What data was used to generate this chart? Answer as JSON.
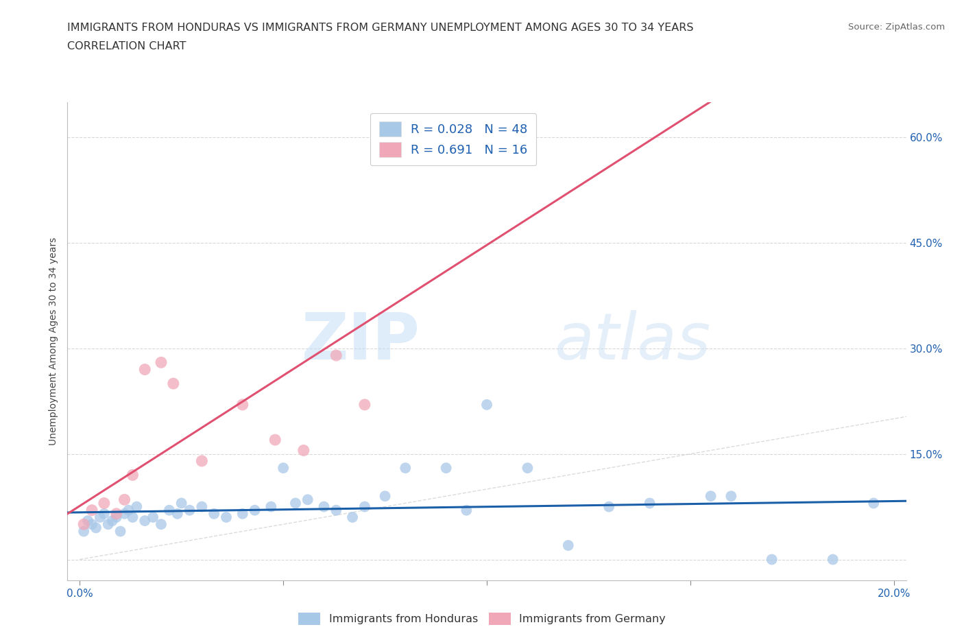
{
  "title_line1": "IMMIGRANTS FROM HONDURAS VS IMMIGRANTS FROM GERMANY UNEMPLOYMENT AMONG AGES 30 TO 34 YEARS",
  "title_line2": "CORRELATION CHART",
  "source_text": "Source: ZipAtlas.com",
  "ylabel": "Unemployment Among Ages 30 to 34 years",
  "watermark_zip": "ZIP",
  "watermark_atlas": "atlas",
  "xlim": [
    -0.003,
    0.203
  ],
  "ylim": [
    -0.03,
    0.65
  ],
  "xticks": [
    0.0,
    0.05,
    0.1,
    0.15,
    0.2
  ],
  "xticklabels": [
    "0.0%",
    "",
    "",
    "",
    "20.0%"
  ],
  "yticks": [
    0.0,
    0.15,
    0.3,
    0.45,
    0.6
  ],
  "right_yticklabels": [
    "",
    "15.0%",
    "30.0%",
    "45.0%",
    "60.0%"
  ],
  "legend_r1": "R = 0.028   N = 48",
  "legend_r2": "R = 0.691   N = 16",
  "legend_color1": "#a8c8e8",
  "legend_color2": "#f0a8b8",
  "scatter_color1": "#a8c8e8",
  "scatter_color2": "#f0a8b8",
  "line_color1": "#1a5fa8",
  "line_color2": "#e05070",
  "diag_color": "#cccccc",
  "background_color": "#ffffff",
  "grid_color": "#d8d8d8",
  "title_fontsize": 11.5,
  "axis_label_fontsize": 10,
  "tick_fontsize": 11,
  "legend_fontsize": 13,
  "source_fontsize": 9.5,
  "honduras_x": [
    0.001,
    0.002,
    0.003,
    0.004,
    0.005,
    0.006,
    0.007,
    0.008,
    0.009,
    0.01,
    0.011,
    0.012,
    0.013,
    0.014,
    0.016,
    0.018,
    0.02,
    0.022,
    0.024,
    0.025,
    0.027,
    0.03,
    0.033,
    0.036,
    0.04,
    0.043,
    0.047,
    0.05,
    0.053,
    0.056,
    0.06,
    0.063,
    0.067,
    0.07,
    0.075,
    0.08,
    0.09,
    0.095,
    0.1,
    0.11,
    0.12,
    0.13,
    0.14,
    0.155,
    0.16,
    0.17,
    0.185,
    0.195
  ],
  "honduras_y": [
    0.04,
    0.055,
    0.05,
    0.045,
    0.06,
    0.065,
    0.05,
    0.055,
    0.06,
    0.04,
    0.065,
    0.07,
    0.06,
    0.075,
    0.055,
    0.06,
    0.05,
    0.07,
    0.065,
    0.08,
    0.07,
    0.075,
    0.065,
    0.06,
    0.065,
    0.07,
    0.075,
    0.13,
    0.08,
    0.085,
    0.075,
    0.07,
    0.06,
    0.075,
    0.09,
    0.13,
    0.13,
    0.07,
    0.22,
    0.13,
    0.02,
    0.075,
    0.08,
    0.09,
    0.09,
    0.0,
    0.0,
    0.08
  ],
  "germany_x": [
    0.001,
    0.003,
    0.006,
    0.009,
    0.011,
    0.013,
    0.016,
    0.02,
    0.023,
    0.03,
    0.04,
    0.048,
    0.055,
    0.063,
    0.07,
    0.085
  ],
  "germany_y": [
    0.05,
    0.07,
    0.08,
    0.065,
    0.085,
    0.12,
    0.27,
    0.28,
    0.25,
    0.14,
    0.22,
    0.17,
    0.155,
    0.29,
    0.22,
    0.58
  ]
}
